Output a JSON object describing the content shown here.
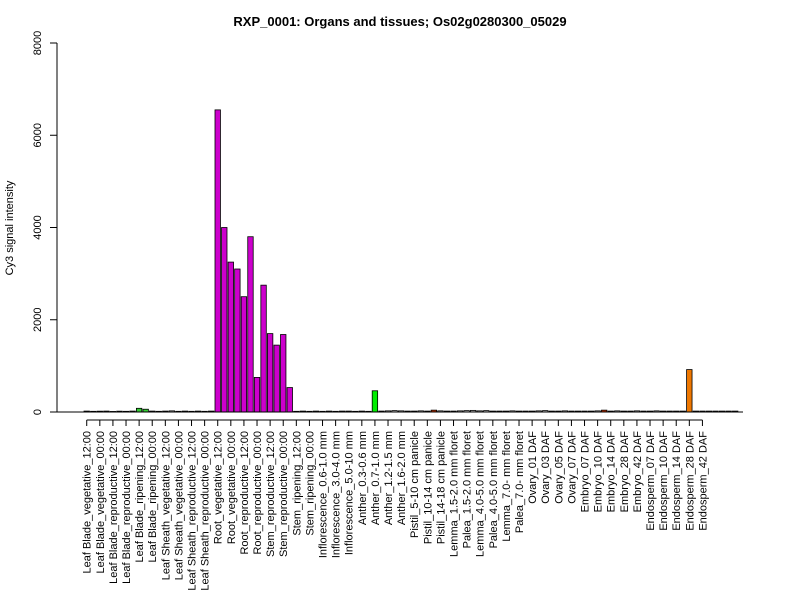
{
  "chart_data": {
    "type": "bar",
    "title": "RXP_0001: Organs and tissues; Os02g0280300_05029",
    "xlabel": "",
    "ylabel": "Cy3 signal intensity",
    "ylim": [
      0,
      8000
    ],
    "yticks": [
      0,
      2000,
      4000,
      6000,
      8000
    ],
    "grid": false,
    "tick_labels": [
      "Leaf Blade_vegetative_12:00",
      "Leaf Blade_vegetative_00:00",
      "Leaf Blade_reproductive_12:00",
      "Leaf Blade_reproductive_00:00",
      "Leaf Blade_ripening_12:00",
      "Leaf Blade_ripening_00:00",
      "Leaf Sheath_vegetative_12:00",
      "Leaf Sheath_vegetative_00:00",
      "Leaf Sheath_reproductive_12:00",
      "Leaf Sheath_reproductive_00:00",
      "Root_vegetative_12:00",
      "Root_vegetative_00:00",
      "Root_reproductive_12:00",
      "Root_reproductive_00:00",
      "Stem_reproductive_12:00",
      "Stem_reproductive_00:00",
      "Stem_ripening_12:00",
      "Stem_ripening_00:00",
      "Inflorescence_0.6-1.0 mm",
      "Inflorescence_3.0-4.0 mm",
      "Inflorescence_5.0-10 mm",
      "Anther_0.3-0.6 mm",
      "Anther_0.7-1.0 mm",
      "Anther_1.2-1.5 mm",
      "Anther_1.6-2.0 mm",
      "Pistil_5-10 cm panicle",
      "Pistil_10-14 cm panicle",
      "Pistil_14-18 cm panicle",
      "Lemma_1.5-2.0 mm floret",
      "Palea_1.5-2.0 mm floret",
      "Lemma_4.0-5.0 mm floret",
      "Palea_4.0-5.0 mm floret",
      "Lemma_7.0- mm floret",
      "Palea_7.0- mm floret",
      "Ovary_01 DAF",
      "Ovary_03 DAF",
      "Ovary_05 DAF",
      "Ovary_07 DAF",
      "Embryo_07 DAF",
      "Embryo_10 DAF",
      "Embryo_14 DAF",
      "Embryo_28 DAF",
      "Embryo_42 DAF",
      "Endosperm_07 DAF",
      "Endosperm_10 DAF",
      "Endosperm_14 DAF",
      "Endosperm_28 DAF",
      "Endosperm_42 DAF"
    ],
    "tick_label_bar_index": [
      0,
      2,
      4,
      6,
      8,
      10,
      12,
      14,
      16,
      18,
      20,
      22,
      24,
      26,
      28,
      30,
      32,
      34,
      36,
      38,
      40,
      42,
      44,
      46,
      48,
      50,
      52,
      54,
      56,
      58,
      60,
      62,
      64,
      66,
      68,
      70,
      72,
      74,
      76,
      78,
      80,
      82,
      84,
      86,
      88,
      90,
      92,
      94
    ],
    "values": [
      20,
      15,
      18,
      20,
      12,
      18,
      15,
      20,
      80,
      60,
      20,
      15,
      20,
      25,
      15,
      20,
      15,
      20,
      15,
      20,
      6550,
      4000,
      3250,
      3100,
      2500,
      3800,
      750,
      2750,
      1700,
      1450,
      1680,
      530,
      15,
      20,
      15,
      20,
      15,
      20,
      15,
      20,
      20,
      15,
      20,
      15,
      460,
      20,
      25,
      30,
      25,
      20,
      20,
      25,
      20,
      40,
      25,
      20,
      20,
      25,
      30,
      35,
      25,
      30,
      20,
      20,
      20,
      25,
      20,
      20,
      20,
      25,
      30,
      20,
      20,
      25,
      20,
      20,
      20,
      20,
      25,
      40,
      20,
      25,
      20,
      20,
      25,
      20,
      20,
      25,
      20,
      20,
      20,
      20,
      920,
      20,
      20,
      20,
      20,
      20,
      20,
      20
    ],
    "colors": [
      "#cccccc",
      "#cccccc",
      "#cccccc",
      "#cccccc",
      "#cccccc",
      "#cccccc",
      "#cccccc",
      "#cccccc",
      "#33cc33",
      "#33cc33",
      "#cccccc",
      "#cccccc",
      "#cccccc",
      "#cccccc",
      "#cccccc",
      "#cccccc",
      "#cccccc",
      "#cccccc",
      "#cccccc",
      "#cccccc",
      "#cc00cc",
      "#cc00cc",
      "#cc00cc",
      "#cc00cc",
      "#cc00cc",
      "#cc00cc",
      "#cc00cc",
      "#cc00cc",
      "#cc00cc",
      "#cc00cc",
      "#cc00cc",
      "#cc00cc",
      "#cccccc",
      "#cccccc",
      "#cccccc",
      "#cccccc",
      "#cccccc",
      "#cccccc",
      "#cccccc",
      "#cccccc",
      "#cccccc",
      "#cccccc",
      "#cccccc",
      "#cccccc",
      "#00ee00",
      "#cccccc",
      "#cccccc",
      "#cccccc",
      "#cccccc",
      "#cccccc",
      "#cccccc",
      "#cccccc",
      "#cccccc",
      "#cc3300",
      "#cccccc",
      "#cccccc",
      "#cccccc",
      "#cccccc",
      "#cccccc",
      "#cccccc",
      "#cccccc",
      "#cccccc",
      "#cccccc",
      "#cccccc",
      "#cccccc",
      "#cccccc",
      "#cccccc",
      "#cccccc",
      "#cccccc",
      "#cccccc",
      "#cccccc",
      "#cccccc",
      "#cccccc",
      "#cccccc",
      "#cccccc",
      "#cccccc",
      "#cccccc",
      "#cccccc",
      "#cccccc",
      "#cc3300",
      "#cccccc",
      "#cccccc",
      "#cccccc",
      "#cccccc",
      "#cccccc",
      "#cccccc",
      "#cccccc",
      "#cccccc",
      "#cccccc",
      "#cccccc",
      "#cccccc",
      "#cccccc",
      "#ee7700",
      "#cccccc",
      "#cccccc",
      "#cccccc",
      "#cccccc",
      "#cccccc",
      "#cccccc",
      "#cccccc"
    ]
  }
}
